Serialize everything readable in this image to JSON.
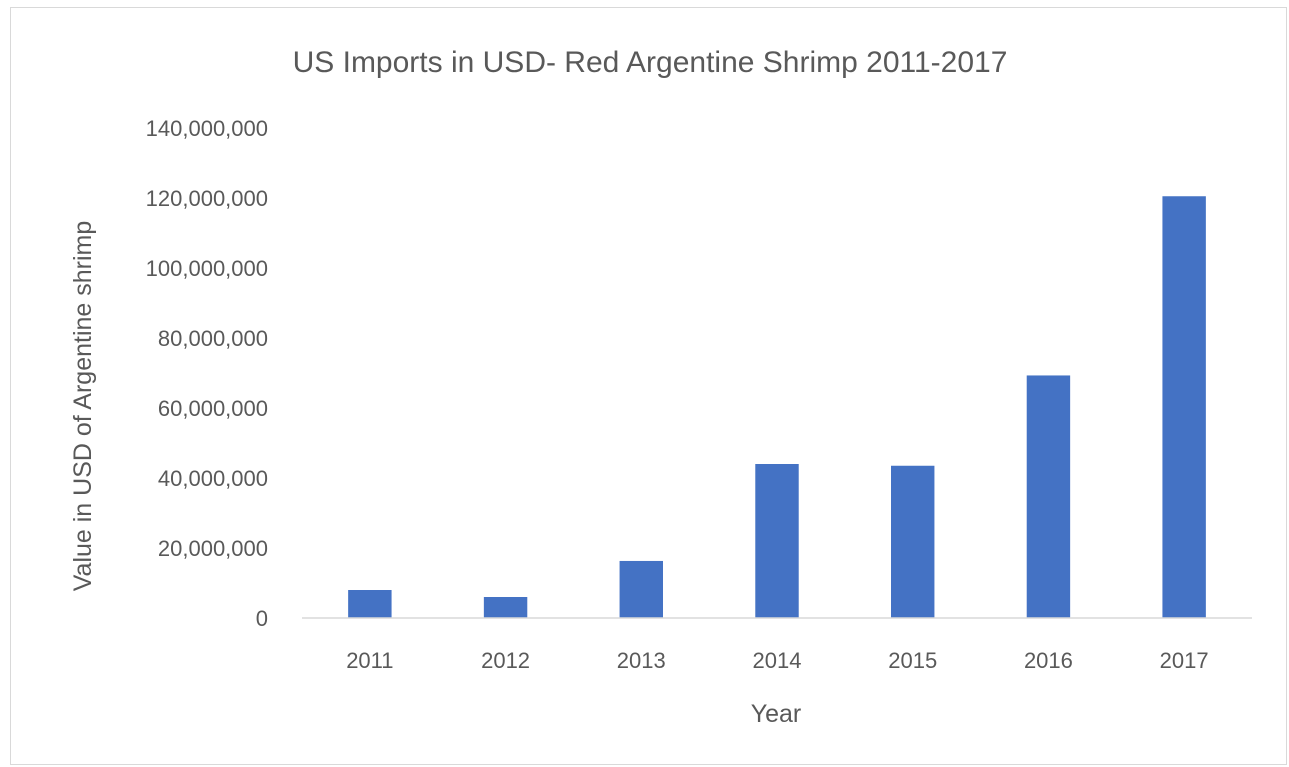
{
  "chart_data": {
    "type": "bar",
    "title": "US Imports in USD- Red Argentine Shrimp 2011-2017",
    "xlabel": "Year",
    "ylabel": "Value in USD of Argentine shrimp",
    "categories": [
      "2011",
      "2012",
      "2013",
      "2014",
      "2015",
      "2016",
      "2017"
    ],
    "values": [
      8000000,
      6000000,
      16300000,
      44000000,
      43500000,
      69300000,
      120500000
    ],
    "ylim": [
      0,
      140000000
    ],
    "yticks": [
      0,
      20000000,
      40000000,
      60000000,
      80000000,
      100000000,
      120000000,
      140000000
    ],
    "ytick_labels": [
      "0",
      "20,000,000",
      "40,000,000",
      "60,000,000",
      "80,000,000",
      "100,000,000",
      "120,000,000",
      "140,000,000"
    ],
    "grid": false,
    "legend": "none",
    "bar_color": "#4472c4",
    "text_color": "#595959",
    "axis_color": "#d9d9d9"
  }
}
